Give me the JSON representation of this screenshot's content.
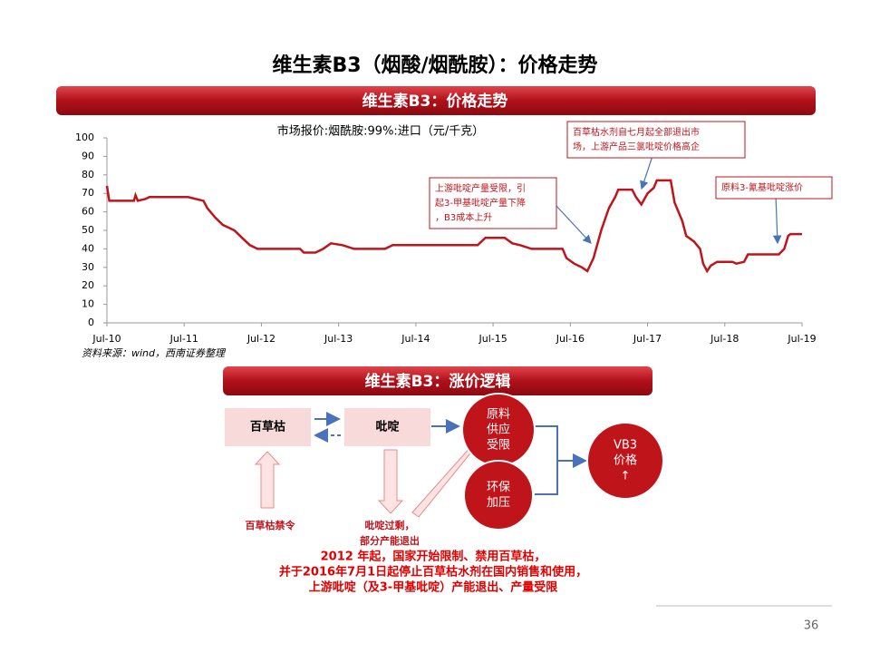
{
  "header": {
    "title": "维生素B3（烟酸/烟酰胺）：价格走势"
  },
  "chart_data": {
    "type": "line",
    "banner": "维生素B3：价格走势",
    "title": "市场报价:烟酰胺:99%:进口（元/千克）",
    "source": "资料来源：wind，西南证券整理",
    "color": "#c0141b",
    "xlim": [
      2010.5,
      2019.5
    ],
    "xticks": [
      {
        "value": 2010.5,
        "label": "Jul-10"
      },
      {
        "value": 2011.5,
        "label": "Jul-11"
      },
      {
        "value": 2012.5,
        "label": "Jul-12"
      },
      {
        "value": 2013.5,
        "label": "Jul-13"
      },
      {
        "value": 2014.5,
        "label": "Jul-14"
      },
      {
        "value": 2015.5,
        "label": "Jul-15"
      },
      {
        "value": 2016.5,
        "label": "Jul-16"
      },
      {
        "value": 2017.5,
        "label": "Jul-17"
      },
      {
        "value": 2018.5,
        "label": "Jul-18"
      },
      {
        "value": 2019.5,
        "label": "Jul-19"
      }
    ],
    "ylim": [
      0,
      100
    ],
    "yticks": [
      0,
      10,
      20,
      30,
      40,
      50,
      60,
      70,
      80,
      90,
      100
    ],
    "x": [
      2010.5,
      2010.53,
      2010.85,
      2010.87,
      2010.9,
      2011.0,
      2011.05,
      2011.45,
      2011.55,
      2011.75,
      2011.8,
      2011.9,
      2012.0,
      2012.15,
      2012.25,
      2012.35,
      2012.45,
      2013.0,
      2013.05,
      2013.2,
      2013.3,
      2013.4,
      2013.55,
      2013.7,
      2014.1,
      2014.2,
      2014.9,
      2015.3,
      2015.4,
      2015.65,
      2015.75,
      2015.85,
      2016.0,
      2016.4,
      2016.45,
      2016.55,
      2016.65,
      2016.72,
      2016.8,
      2016.9,
      2017.0,
      2017.08,
      2017.12,
      2017.3,
      2017.35,
      2017.42,
      2017.5,
      2017.58,
      2017.62,
      2017.8,
      2017.85,
      2017.95,
      2018.0,
      2018.1,
      2018.18,
      2018.22,
      2018.27,
      2018.32,
      2018.4,
      2018.6,
      2018.65,
      2018.75,
      2018.8,
      2019.2,
      2019.27,
      2019.32,
      2019.35,
      2019.5
    ],
    "values": [
      74,
      66,
      66,
      69,
      66,
      67,
      68,
      68,
      68,
      66,
      62,
      57,
      53,
      50,
      46,
      42,
      40,
      40,
      38,
      38,
      40,
      43,
      42,
      40,
      40,
      42,
      42,
      42,
      46,
      46,
      43,
      42,
      40,
      40,
      35,
      32,
      30,
      28,
      35,
      50,
      62,
      68,
      72,
      72,
      68,
      64,
      70,
      73,
      77,
      77,
      65,
      55,
      47,
      44,
      40,
      32,
      28,
      31,
      33,
      33,
      32,
      33,
      37,
      37,
      40,
      47,
      48,
      48
    ],
    "annotations": [
      [
        "上游吡啶产量受限，引",
        "起3-甲基吡啶产量下降",
        "，B3成本上升"
      ],
      [
        "百草枯水剂自七月起全部退出市",
        "场，上游产品三氯吡啶价格高企"
      ],
      [
        "原料3-氰基吡啶涨价"
      ]
    ]
  },
  "diagram": {
    "banner": "维生素B3：涨价逻辑",
    "boxes": [
      "百草枯",
      "吡啶"
    ],
    "circles": [
      [
        "原料",
        "供应",
        "受限"
      ],
      [
        "环保",
        "加压"
      ],
      [
        "VB3",
        "价格",
        "↑"
      ]
    ],
    "labels": [
      [
        "百草枯禁令"
      ],
      [
        "吡啶过剩，",
        "部分产能退出"
      ]
    ],
    "note": [
      "2012 年起，国家开始限制、禁用百草枯，",
      "并于2016年7月1日起停止百草枯水剂在国内销售和使用，",
      "上游吡啶（及3-甲基吡啶）产能退出、产量受限"
    ]
  },
  "footer": {
    "page": "36"
  }
}
